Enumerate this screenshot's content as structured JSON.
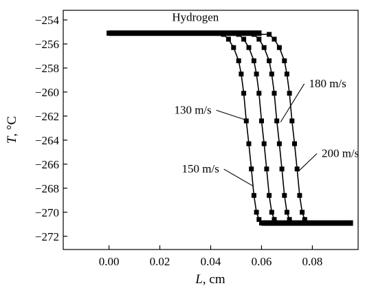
{
  "chart_data": {
    "type": "line",
    "title": "",
    "xlabel": {
      "main": "L",
      "unit": ", cm"
    },
    "ylabel": {
      "main": "T",
      "unit": ", °C"
    },
    "xlim": [
      -0.018,
      0.098
    ],
    "ylim": [
      -273.1,
      -253.2
    ],
    "xticks": [
      {
        "value": 0.0,
        "label": "0.00"
      },
      {
        "value": 0.02,
        "label": "0.02"
      },
      {
        "value": 0.04,
        "label": "0.04"
      },
      {
        "value": 0.06,
        "label": "0.06"
      },
      {
        "value": 0.08,
        "label": "0.08"
      }
    ],
    "yticks": [
      {
        "value": -254,
        "label": "−254"
      },
      {
        "value": -256,
        "label": "−256"
      },
      {
        "value": -258,
        "label": "−258"
      },
      {
        "value": -260,
        "label": "−260"
      },
      {
        "value": -262,
        "label": "−262"
      },
      {
        "value": -264,
        "label": "−264"
      },
      {
        "value": -266,
        "label": "−266"
      },
      {
        "value": -268,
        "label": "−268"
      },
      {
        "value": -270,
        "label": "−270"
      },
      {
        "value": -272,
        "label": "−272"
      }
    ],
    "grid": false,
    "legend": "none",
    "colors": {
      "line": "#000000",
      "marker": "#000000",
      "axis": "#000000"
    },
    "series": [
      {
        "name": "130 m/s",
        "x": [
          0.0,
          0.045,
          0.047,
          0.049,
          0.051,
          0.052,
          0.053,
          0.054,
          0.055,
          0.056,
          0.057,
          0.058,
          0.059,
          0.06
        ],
        "y": [
          -255.1,
          -255.2,
          -255.6,
          -256.3,
          -257.4,
          -258.5,
          -260.1,
          -262.4,
          -264.3,
          -266.4,
          -268.6,
          -270.0,
          -270.6,
          -270.9
        ]
      },
      {
        "name": "150 m/s",
        "x": [
          0.0,
          0.051,
          0.053,
          0.055,
          0.057,
          0.058,
          0.059,
          0.06,
          0.061,
          0.062,
          0.063,
          0.064,
          0.065,
          0.066
        ],
        "y": [
          -255.1,
          -255.2,
          -255.6,
          -256.3,
          -257.4,
          -258.5,
          -260.1,
          -262.4,
          -264.3,
          -266.4,
          -268.6,
          -270.0,
          -270.6,
          -270.9
        ]
      },
      {
        "name": "180 m/s",
        "x": [
          0.0,
          0.057,
          0.059,
          0.061,
          0.063,
          0.064,
          0.065,
          0.066,
          0.067,
          0.068,
          0.069,
          0.07,
          0.071,
          0.072
        ],
        "y": [
          -255.1,
          -255.2,
          -255.6,
          -256.3,
          -257.4,
          -258.5,
          -260.1,
          -262.4,
          -264.3,
          -266.4,
          -268.6,
          -270.0,
          -270.6,
          -270.9
        ]
      },
      {
        "name": "200 m/s",
        "x": [
          0.0,
          0.063,
          0.065,
          0.067,
          0.069,
          0.07,
          0.071,
          0.072,
          0.073,
          0.074,
          0.075,
          0.076,
          0.077,
          0.078
        ],
        "y": [
          -255.1,
          -255.2,
          -255.6,
          -256.3,
          -257.4,
          -258.5,
          -260.1,
          -262.4,
          -264.3,
          -266.4,
          -268.6,
          -270.0,
          -270.6,
          -270.9
        ]
      }
    ],
    "plateaus": [
      {
        "x_start": 0.0,
        "x_end": 0.06,
        "y": -255.1
      },
      {
        "x_start": 0.06,
        "x_end": 0.096,
        "y": -270.9
      }
    ],
    "annotations": [
      {
        "text": "Hydrogen",
        "x": 0.034,
        "y": -254.1
      },
      {
        "text": "130 m/s",
        "x": 0.033,
        "y": -261.8,
        "arrow_x": 0.0535,
        "arrow_y": -262.3
      },
      {
        "text": "150 m/s",
        "x": 0.036,
        "y": -266.7,
        "arrow_x": 0.0565,
        "arrow_y": -267.8
      },
      {
        "text": "180 m/s",
        "x": 0.086,
        "y": -259.6,
        "arrow_x": 0.0675,
        "arrow_y": -262.5
      },
      {
        "text": "200 m/s",
        "x": 0.091,
        "y": -265.4,
        "arrow_x": 0.0745,
        "arrow_y": -266.6
      }
    ]
  }
}
